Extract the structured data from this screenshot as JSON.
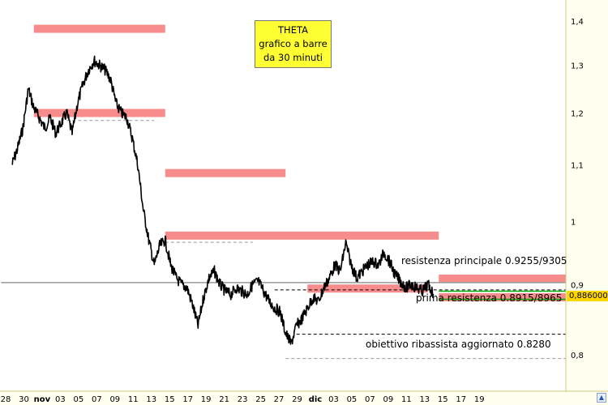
{
  "title_box": {
    "line1": "THETA",
    "line2": "grafico a barre",
    "line3": "da 30 minuti"
  },
  "last_price_label": "0,886000",
  "annotations": {
    "main_resistance": "resistenza principale 0.9255/9305",
    "first_resistance": "prima resistenza 0.8915/8965",
    "target": "obiettivo ribassista aggiornato 0.8280"
  },
  "colors": {
    "background": "#ffffff",
    "price_line": "#000000",
    "resistance_zone": "#f78c8c",
    "title_box_bg": "#ffff33",
    "price_tag_bg": "#ffd700",
    "level_green": "#00aa00",
    "level_grey": "#999999"
  },
  "chart_data": {
    "type": "line",
    "title": "THETA grafico a barre da 30 minuti",
    "xlabel": "",
    "ylabel": "",
    "y_scale": "log",
    "ylim": [
      0.775,
      1.475
    ],
    "y_ticks": [
      "1,4",
      "1,3",
      "1,2",
      "1,1",
      "1",
      "0,9",
      "0,8"
    ],
    "y_tick_values": [
      1.4,
      1.3,
      1.2,
      1.1,
      1.0,
      0.9,
      0.8
    ],
    "x_ticks": [
      "28",
      "30",
      "nov",
      "03",
      "05",
      "07",
      "09",
      "11",
      "13",
      "15",
      "17",
      "19",
      "21",
      "23",
      "25",
      "27",
      "29",
      "dic",
      "03",
      "05",
      "07",
      "09",
      "11",
      "13",
      "15",
      "17",
      "19"
    ],
    "x_tick_bold": [
      "nov",
      "dic"
    ],
    "x_range_dates": [
      "2021-10-28",
      "2021-12-19"
    ],
    "grid": false,
    "series": [
      {
        "values_by_date": [
          [
            "2021-10-28",
            1.1
          ],
          [
            "2021-10-28T12:00",
            1.13
          ],
          [
            "2021-10-29",
            1.17
          ],
          [
            "2021-10-29T12:00",
            1.25
          ],
          [
            "2021-10-30",
            1.21
          ],
          [
            "2021-10-30T12:00",
            1.19
          ],
          [
            "2021-10-31",
            1.17
          ],
          [
            "2021-10-31T12:00",
            1.19
          ],
          [
            "2021-11-01",
            1.16
          ],
          [
            "2021-11-01T12:00",
            1.18
          ],
          [
            "2021-11-02",
            1.2
          ],
          [
            "2021-11-02T12:00",
            1.16
          ],
          [
            "2021-11-03",
            1.22
          ],
          [
            "2021-11-03T12:00",
            1.26
          ],
          [
            "2021-11-04",
            1.29
          ],
          [
            "2021-11-04T12:00",
            1.31
          ],
          [
            "2021-11-05",
            1.3
          ],
          [
            "2021-11-05T12:00",
            1.29
          ],
          [
            "2021-11-06",
            1.27
          ],
          [
            "2021-11-06T12:00",
            1.22
          ],
          [
            "2021-11-07",
            1.2
          ],
          [
            "2021-11-07T12:00",
            1.19
          ],
          [
            "2021-11-08",
            1.15
          ],
          [
            "2021-11-08T12:00",
            1.1
          ],
          [
            "2021-11-09",
            1.02
          ],
          [
            "2021-11-09T12:00",
            0.97
          ],
          [
            "2021-11-10",
            0.93
          ],
          [
            "2021-11-10T12:00",
            0.96
          ],
          [
            "2021-11-11",
            0.97
          ],
          [
            "2021-11-11T12:00",
            0.93
          ],
          [
            "2021-11-12",
            0.91
          ],
          [
            "2021-11-12T12:00",
            0.9
          ],
          [
            "2021-11-13",
            0.895
          ],
          [
            "2021-11-13T12:00",
            0.87
          ],
          [
            "2021-11-14",
            0.84
          ],
          [
            "2021-11-14T12:00",
            0.88
          ],
          [
            "2021-11-15",
            0.91
          ],
          [
            "2021-11-15T12:00",
            0.92
          ],
          [
            "2021-11-16",
            0.9
          ],
          [
            "2021-11-16T12:00",
            0.89
          ],
          [
            "2021-11-17",
            0.885
          ],
          [
            "2021-11-17T12:00",
            0.895
          ],
          [
            "2021-11-18",
            0.89
          ],
          [
            "2021-11-18T12:00",
            0.885
          ],
          [
            "2021-11-19",
            0.9
          ],
          [
            "2021-11-19T12:00",
            0.905
          ],
          [
            "2021-11-20",
            0.89
          ],
          [
            "2021-11-20T12:00",
            0.875
          ],
          [
            "2021-11-21",
            0.865
          ],
          [
            "2021-11-21T12:00",
            0.86
          ],
          [
            "2021-11-22",
            0.83
          ],
          [
            "2021-11-22T12:00",
            0.815
          ],
          [
            "2021-11-23",
            0.84
          ],
          [
            "2021-11-23T12:00",
            0.85
          ],
          [
            "2021-11-24",
            0.865
          ],
          [
            "2021-11-24T12:00",
            0.88
          ],
          [
            "2021-11-25",
            0.875
          ],
          [
            "2021-11-25T12:00",
            0.895
          ],
          [
            "2021-11-26",
            0.91
          ],
          [
            "2021-11-26T12:00",
            0.93
          ],
          [
            "2021-11-27",
            0.92
          ],
          [
            "2021-11-27T12:00",
            0.965
          ],
          [
            "2021-11-28",
            0.93
          ],
          [
            "2021-11-28T12:00",
            0.91
          ],
          [
            "2021-11-29",
            0.92
          ],
          [
            "2021-11-29T12:00",
            0.93
          ],
          [
            "2021-11-30",
            0.935
          ],
          [
            "2021-11-30T12:00",
            0.93
          ],
          [
            "2021-12-01",
            0.95
          ],
          [
            "2021-12-01T12:00",
            0.935
          ],
          [
            "2021-12-02",
            0.915
          ],
          [
            "2021-12-02T12:00",
            0.905
          ],
          [
            "2021-12-03",
            0.895
          ],
          [
            "2021-12-03T12:00",
            0.9
          ],
          [
            "2021-12-04",
            0.895
          ],
          [
            "2021-12-04T12:00",
            0.89
          ],
          [
            "2021-12-05",
            0.9
          ],
          [
            "2021-12-05T12:00",
            0.886
          ]
        ]
      }
    ],
    "levels": [
      {
        "kind": "zone",
        "y": 1.382,
        "x_range": [
          "2021-10-30",
          "2021-11-11"
        ]
      },
      {
        "kind": "zone",
        "y": 1.2,
        "x_range": [
          "2021-10-30",
          "2021-11-11"
        ]
      },
      {
        "kind": "zone",
        "y": 1.085,
        "x_range": [
          "2021-11-11",
          "2021-11-22"
        ]
      },
      {
        "kind": "zone",
        "y": 0.977,
        "x_range": [
          "2021-11-11",
          "2021-12-06"
        ]
      },
      {
        "kind": "zone",
        "y": 0.894,
        "x_range": [
          "2021-11-24",
          "2021-12-05"
        ]
      },
      {
        "kind": "zone",
        "y": 0.909,
        "x_range": [
          "2021-12-06",
          "2021-12-19"
        ]
      },
      {
        "kind": "zone",
        "y": 0.881,
        "x_range": [
          "2021-12-06",
          "2021-12-19"
        ]
      },
      {
        "kind": "line",
        "style": "solid",
        "color": "grey",
        "y": 0.903,
        "x_range": [
          "2021-10-27",
          "2021-12-19"
        ]
      },
      {
        "kind": "line",
        "style": "solid",
        "color": "green",
        "y": 0.89,
        "x_range": [
          "2021-12-06",
          "2021-12-19"
        ]
      },
      {
        "kind": "line",
        "style": "solid",
        "color": "green",
        "y": 0.878,
        "x_range": [
          "2021-12-06",
          "2021-12-19"
        ]
      },
      {
        "kind": "line",
        "style": "dashed",
        "color": "grey",
        "y": 1.185,
        "x_range": [
          "2021-11-02",
          "2021-11-10"
        ]
      },
      {
        "kind": "line",
        "style": "dashed",
        "color": "grey",
        "y": 0.966,
        "x_range": [
          "2021-11-11",
          "2021-11-19"
        ]
      },
      {
        "kind": "line",
        "style": "dashed",
        "color": "black",
        "y": 0.892,
        "x_range": [
          "2021-11-21",
          "2021-12-19"
        ]
      },
      {
        "kind": "line",
        "style": "dashed",
        "color": "black",
        "y": 0.828,
        "x_range": [
          "2021-11-23",
          "2021-12-19"
        ]
      },
      {
        "kind": "line",
        "style": "dashed",
        "color": "grey",
        "y": 0.795,
        "x_range": [
          "2021-11-22",
          "2021-12-19"
        ]
      }
    ]
  }
}
